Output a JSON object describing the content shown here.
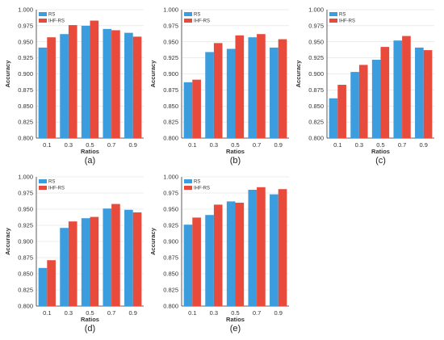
{
  "colors": {
    "rs": "#3b9ddd",
    "ihf_rs": "#e84a3c",
    "grid": "#d9d9d9",
    "axis": "#333333"
  },
  "chart_data": [
    {
      "type": "bar",
      "panel_label": "(a)",
      "categories": [
        "0.1",
        "0.3",
        "0.5",
        "0.7",
        "0.9"
      ],
      "xlabel": "Ratios",
      "ylabel": "Accuracy",
      "ylim": [
        0.8,
        1.0
      ],
      "yticks": [
        "0.800",
        "0.825",
        "0.850",
        "0.875",
        "0.900",
        "0.925",
        "0.950",
        "0.975",
        "1.000"
      ],
      "grid": true,
      "legend_position": "top-left",
      "series": [
        {
          "name": "RS",
          "values": [
            0.941,
            0.962,
            0.975,
            0.97,
            0.964
          ]
        },
        {
          "name": "IHF-RS",
          "values": [
            0.957,
            0.976,
            0.983,
            0.968,
            0.958
          ]
        }
      ]
    },
    {
      "type": "bar",
      "panel_label": "(b)",
      "categories": [
        "0.1",
        "0.3",
        "0.5",
        "0.7",
        "0.9"
      ],
      "xlabel": "Ratios",
      "ylabel": "Accuracy",
      "ylim": [
        0.8,
        1.0
      ],
      "yticks": [
        "0.800",
        "0.825",
        "0.850",
        "0.875",
        "0.900",
        "0.925",
        "0.950",
        "0.975",
        "1.000"
      ],
      "grid": true,
      "legend_position": "top-left",
      "series": [
        {
          "name": "RS",
          "values": [
            0.887,
            0.934,
            0.939,
            0.957,
            0.941
          ]
        },
        {
          "name": "IHF-RS",
          "values": [
            0.891,
            0.948,
            0.96,
            0.962,
            0.954
          ]
        }
      ]
    },
    {
      "type": "bar",
      "panel_label": "(c)",
      "categories": [
        "0.1",
        "0.3",
        "0.5",
        "0.7",
        "0.9"
      ],
      "xlabel": "Ratios",
      "ylabel": "Accuracy",
      "ylim": [
        0.8,
        1.0
      ],
      "yticks": [
        "0.800",
        "0.825",
        "0.850",
        "0.875",
        "0.900",
        "0.925",
        "0.950",
        "0.975",
        "1.000"
      ],
      "grid": true,
      "legend_position": "top-left",
      "series": [
        {
          "name": "RS",
          "values": [
            0.862,
            0.903,
            0.922,
            0.952,
            0.941
          ]
        },
        {
          "name": "IHF-RS",
          "values": [
            0.883,
            0.914,
            0.942,
            0.959,
            0.937
          ]
        }
      ]
    },
    {
      "type": "bar",
      "panel_label": "(d)",
      "categories": [
        "0.1",
        "0.3",
        "0.5",
        "0.7",
        "0.9"
      ],
      "xlabel": "Ratios",
      "ylabel": "Accuracy",
      "ylim": [
        0.8,
        1.0
      ],
      "yticks": [
        "0.800",
        "0.825",
        "0.850",
        "0.875",
        "0.900",
        "0.925",
        "0.950",
        "0.975",
        "1.000"
      ],
      "grid": true,
      "legend_position": "top-left",
      "series": [
        {
          "name": "RS",
          "values": [
            0.859,
            0.921,
            0.936,
            0.951,
            0.949
          ]
        },
        {
          "name": "IHF-RS",
          "values": [
            0.871,
            0.931,
            0.938,
            0.958,
            0.945
          ]
        }
      ]
    },
    {
      "type": "bar",
      "panel_label": "(e)",
      "categories": [
        "0.1",
        "0.3",
        "0.5",
        "0.7",
        "0.9"
      ],
      "xlabel": "Ratios",
      "ylabel": "Accuracy",
      "ylim": [
        0.8,
        1.0
      ],
      "yticks": [
        "0.800",
        "0.825",
        "0.850",
        "0.875",
        "0.900",
        "0.925",
        "0.950",
        "0.975",
        "1.000"
      ],
      "grid": true,
      "legend_position": "top-left",
      "series": [
        {
          "name": "RS",
          "values": [
            0.926,
            0.941,
            0.962,
            0.98,
            0.973
          ]
        },
        {
          "name": "IHF-RS",
          "values": [
            0.937,
            0.957,
            0.96,
            0.984,
            0.981
          ]
        }
      ]
    }
  ]
}
